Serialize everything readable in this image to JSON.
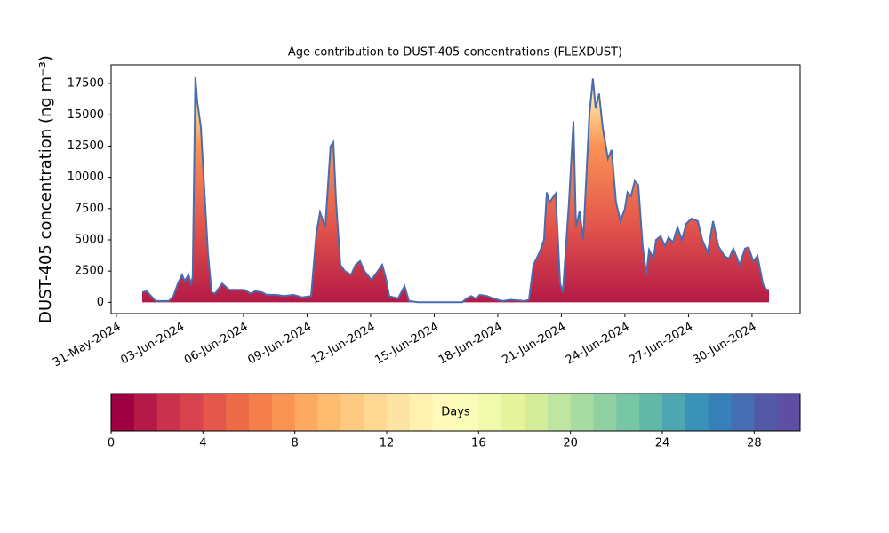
{
  "chart_data": {
    "type": "area",
    "title": "Age contribution to DUST-405 concentrations (FLEXDUST)",
    "y_label": "DUST-405 concentration (ng m⁻³)",
    "x": [
      1.22,
      1.43,
      1.64,
      1.85,
      2.48,
      2.69,
      2.9,
      3.1,
      3.23,
      3.4,
      3.52,
      3.6,
      3.73,
      3.82,
      3.99,
      4.15,
      4.32,
      4.49,
      4.66,
      4.99,
      5.33,
      5.62,
      6.04,
      6.34,
      6.55,
      6.88,
      7.09,
      7.51,
      7.93,
      8.35,
      8.77,
      9.19,
      9.44,
      9.61,
      9.86,
      10.11,
      10.24,
      10.37,
      10.57,
      10.78,
      11.08,
      11.29,
      11.5,
      11.71,
      12.04,
      12.34,
      12.55,
      12.71,
      12.88,
      13.3,
      13.6,
      13.81,
      14.23,
      16.32,
      16.53,
      16.74,
      16.95,
      17.16,
      17.5,
      17.79,
      18.21,
      18.63,
      19.26,
      19.47,
      19.68,
      19.97,
      20.18,
      20.31,
      20.44,
      20.73,
      20.94,
      21.07,
      21.36,
      21.57,
      21.69,
      21.86,
      22.03,
      22.32,
      22.49,
      22.62,
      22.78,
      22.95,
      23.2,
      23.37,
      23.58,
      23.79,
      24.0,
      24.12,
      24.29,
      24.46,
      24.63,
      24.84,
      25.01,
      25.14,
      25.35,
      25.47,
      25.68,
      25.89,
      26.06,
      26.27,
      26.48,
      26.69,
      26.9,
      27.15,
      27.44,
      27.65,
      27.91,
      28.16,
      28.41,
      28.7,
      28.91,
      29.12,
      29.42,
      29.67,
      29.84,
      30.05,
      30.26,
      30.51,
      30.68,
      30.8
    ],
    "values": [
      800,
      900,
      500,
      100,
      100,
      500,
      1500,
      2200,
      1700,
      2200,
      1500,
      2000,
      18000,
      16000,
      14000,
      9000,
      4000,
      800,
      700,
      1500,
      1000,
      1000,
      1000,
      700,
      900,
      800,
      600,
      600,
      500,
      600,
      400,
      500,
      5500,
      7200,
      6000,
      12500,
      12800,
      8000,
      3000,
      2500,
      2200,
      3000,
      3300,
      2500,
      1800,
      2500,
      3000,
      2000,
      500,
      300,
      1300,
      100,
      0,
      0,
      300,
      500,
      300,
      600,
      500,
      300,
      100,
      200,
      100,
      200,
      3000,
      4000,
      5000,
      8800,
      8000,
      8700,
      1500,
      800,
      8000,
      14500,
      6000,
      7300,
      5000,
      15000,
      17900,
      15500,
      16700,
      14000,
      11500,
      12200,
      8000,
      6500,
      7500,
      8800,
      8500,
      9700,
      9400,
      4500,
      2200,
      4200,
      3500,
      5000,
      5300,
      4500,
      5200,
      4800,
      6000,
      5000,
      6300,
      6700,
      6500,
      5000,
      4000,
      6500,
      4500,
      3700,
      3500,
      4300,
      3000,
      4300,
      4400,
      3300,
      3700,
      1500,
      1000,
      1000
    ],
    "color": "#4a6bad",
    "xlim": [
      -0.25,
      32.27
    ],
    "xticks": [
      {
        "value": 0,
        "label": "31-May-2024"
      },
      {
        "value": 3,
        "label": "03-Jun-2024"
      },
      {
        "value": 6,
        "label": "06-Jun-2024"
      },
      {
        "value": 9,
        "label": "09-Jun-2024"
      },
      {
        "value": 12,
        "label": "12-Jun-2024"
      },
      {
        "value": 15,
        "label": "15-Jun-2024"
      },
      {
        "value": 18,
        "label": "18-Jun-2024"
      },
      {
        "value": 21,
        "label": "21-Jun-2024"
      },
      {
        "value": 24,
        "label": "24-Jun-2024"
      },
      {
        "value": 27,
        "label": "27-Jun-2024"
      },
      {
        "value": 30,
        "label": "30-Jun-2024"
      }
    ],
    "ylim": [
      -900,
      19000
    ],
    "yticks": [
      0,
      2500,
      5000,
      7500,
      10000,
      12500,
      15000,
      17500
    ],
    "colorbar": {
      "label": "Days",
      "lim": [
        0,
        30
      ],
      "ticks": [
        0,
        4,
        8,
        12,
        16,
        20,
        24,
        28
      ],
      "colors": [
        "#9e0142",
        "#b41947",
        "#c9314c",
        "#d8434e",
        "#e4574b",
        "#ed6b46",
        "#f57f4a",
        "#f99455",
        "#fca962",
        "#fdbc6f",
        "#fec980",
        "#fed792",
        "#fee4a2",
        "#fff1b0",
        "#fefbba",
        "#fafdb8",
        "#f1f9aa",
        "#e6f49c",
        "#d4ed9b",
        "#bfe5a0",
        "#a9dca3",
        "#90d1a4",
        "#77c6a6",
        "#62b9a7",
        "#4da6b1",
        "#3b92b9",
        "#3880b9",
        "#466db1",
        "#5459a6",
        "#5e4fa2"
      ]
    }
  }
}
